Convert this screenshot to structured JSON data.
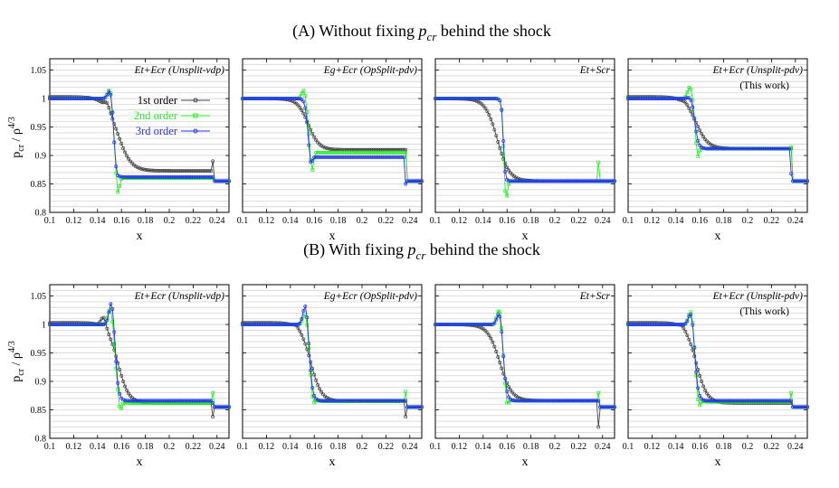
{
  "figure": {
    "row_titles": [
      {
        "prefix": "(A) Without fixing ",
        "var_main": "p",
        "var_sub": "cr",
        "suffix": " behind the shock"
      },
      {
        "prefix": "(B) With fixing ",
        "var_main": "p",
        "var_sub": "cr",
        "suffix": " behind the shock"
      }
    ],
    "ylabel": {
      "main": "p",
      "sub": "cr",
      "mid": " / ρ",
      "sup": "4/3"
    },
    "xlabel": "x",
    "legend": [
      {
        "label": "1st order",
        "color": "#444444"
      },
      {
        "label": "2nd order",
        "color": "#22ee22"
      },
      {
        "label": "3rd order",
        "color": "#2233ee"
      }
    ],
    "xticks": [
      "0.1",
      "0.12",
      "0.14",
      "0.16",
      "0.18",
      "0.2",
      "0.22",
      "0.24"
    ],
    "yticks": [
      "0.8",
      "0.85",
      "0.9",
      "0.95",
      "1",
      "1.05"
    ],
    "panel_titles": [
      {
        "line1": "Et+Ecr (Unsplit-vdp)",
        "line2": ""
      },
      {
        "line1": "Eg+Ecr (OpSplit-pdv)",
        "line2": ""
      },
      {
        "line1": "Et+Scr",
        "line2": ""
      },
      {
        "line1": "Et+Ecr (Unsplit-pdv)",
        "line2": "(This work)"
      }
    ]
  },
  "chart_data": {
    "type": "line",
    "xlabel": "x",
    "ylabel": "p_cr / ρ^(4/3)",
    "xlim": [
      0.1,
      0.25
    ],
    "ylim": [
      0.8,
      1.07
    ],
    "grid": "horizontal",
    "series_names": [
      "1st order",
      "2nd order",
      "3rd order"
    ],
    "panels": [
      {
        "row": "A",
        "title": "Et+Ecr (Unsplit-vdp)",
        "params": {
          "o1": {
            "L": 1.003,
            "mid": 0.873,
            "end": 0.855,
            "xs": 0.157,
            "w": 0.0055,
            "peak": [
              0.148,
              0.01
            ],
            "tail": 0.89
          },
          "o2": {
            "L": 1.0,
            "mid": 0.86,
            "end": 0.855,
            "xs": 0.1535,
            "w": 0.0012,
            "peak": [
              0.151,
              0.025
            ],
            "over": [
              0.157,
              -0.032
            ],
            "tail": 0.86
          },
          "o3": {
            "L": 1.0,
            "mid": 0.862,
            "end": 0.855,
            "xs": 0.1535,
            "w": 0.0012,
            "peak": [
              0.151,
              0.022
            ],
            "over": [
              0.156,
              -0.006
            ],
            "tail": 0.862
          }
        }
      },
      {
        "row": "A",
        "title": "Eg+Ecr (OpSplit-pdv)",
        "params": {
          "o1": {
            "L": 1.0,
            "mid": 0.91,
            "end": 0.855,
            "xs": 0.155,
            "w": 0.0045,
            "tail": 0.91
          },
          "o2": {
            "L": 1.0,
            "mid": 0.905,
            "end": 0.855,
            "xs": 0.1545,
            "w": 0.0015,
            "peak": [
              0.152,
              0.025
            ],
            "over": [
              0.158,
              -0.04
            ],
            "tail": 0.905
          },
          "o3": {
            "L": 1.0,
            "mid": 0.897,
            "end": 0.855,
            "xs": 0.1545,
            "w": 0.0012,
            "over": [
              0.157,
              -0.02
            ],
            "tail": 0.85
          }
        }
      },
      {
        "row": "A",
        "title": "Et+Scr",
        "params": {
          "o1": {
            "L": 1.0,
            "mid": 0.855,
            "end": 0.855,
            "xs": 0.152,
            "w": 0.005
          },
          "o2": {
            "L": 1.0,
            "mid": 0.855,
            "end": 0.855,
            "xs": 0.157,
            "w": 0.0008,
            "over": [
              0.159,
              -0.04
            ],
            "tail": 0.888
          },
          "o3": {
            "L": 1.0,
            "mid": 0.855,
            "end": 0.855,
            "xs": 0.157,
            "w": 0.0008,
            "over": [
              0.158,
              -0.003
            ]
          }
        }
      },
      {
        "row": "A",
        "title": "Et+Ecr (Unsplit-pdv)",
        "params": {
          "o1": {
            "L": 1.003,
            "mid": 0.912,
            "end": 0.855,
            "xs": 0.157,
            "w": 0.005,
            "peak": [
              0.148,
              0.003
            ],
            "tail": 0.912
          },
          "o2": {
            "L": 1.0,
            "mid": 0.912,
            "end": 0.855,
            "xs": 0.156,
            "w": 0.0015,
            "peak": [
              0.152,
              0.025
            ],
            "over": [
              0.158,
              -0.03
            ],
            "tail": 0.915
          },
          "o3": {
            "L": 1.0,
            "mid": 0.912,
            "end": 0.855,
            "xs": 0.156,
            "w": 0.0015,
            "peak": [
              0.152,
              0.005
            ],
            "tail": 0.868
          }
        }
      },
      {
        "row": "B",
        "title": "Et+Ecr (Unsplit-vdp)",
        "params": {
          "o1": {
            "L": 1.003,
            "mid": 0.862,
            "end": 0.855,
            "xs": 0.157,
            "w": 0.0045,
            "peak": [
              0.145,
              0.018
            ],
            "tail": 0.838
          },
          "o2": {
            "L": 1.0,
            "mid": 0.862,
            "end": 0.855,
            "xs": 0.155,
            "w": 0.0015,
            "peak": [
              0.151,
              0.035
            ],
            "over": [
              0.159,
              -0.02
            ],
            "tail": 0.88
          },
          "o3": {
            "L": 1.0,
            "mid": 0.866,
            "end": 0.855,
            "xs": 0.155,
            "w": 0.0015,
            "peak": [
              0.152,
              0.05
            ],
            "tail": 0.862
          }
        }
      },
      {
        "row": "B",
        "title": "Eg+Ecr (OpSplit-pdv)",
        "params": {
          "o1": {
            "L": 1.003,
            "mid": 0.865,
            "end": 0.855,
            "xs": 0.157,
            "w": 0.0045,
            "peak": [
              0.145,
              0.004
            ],
            "tail": 0.838
          },
          "o2": {
            "L": 1.0,
            "mid": 0.865,
            "end": 0.855,
            "xs": 0.156,
            "w": 0.0015,
            "peak": [
              0.153,
              0.03
            ],
            "over": [
              0.159,
              -0.015
            ],
            "tail": 0.882
          },
          "o3": {
            "L": 1.0,
            "mid": 0.866,
            "end": 0.855,
            "xs": 0.156,
            "w": 0.0015,
            "peak": [
              0.153,
              0.045
            ],
            "tail": 0.866
          }
        }
      },
      {
        "row": "B",
        "title": "Et+Scr",
        "params": {
          "o1": {
            "L": 1.0,
            "mid": 0.866,
            "end": 0.855,
            "xs": 0.154,
            "w": 0.005,
            "tail": 0.82
          },
          "o2": {
            "L": 1.0,
            "mid": 0.866,
            "end": 0.855,
            "xs": 0.157,
            "w": 0.0015,
            "peak": [
              0.154,
              0.038
            ],
            "over": [
              0.16,
              -0.02
            ],
            "tail": 0.88
          },
          "o3": {
            "L": 1.0,
            "mid": 0.866,
            "end": 0.855,
            "xs": 0.157,
            "w": 0.0015,
            "peak": [
              0.154,
              0.03
            ],
            "tail": 0.866
          }
        }
      },
      {
        "row": "B",
        "title": "Et+Ecr (Unsplit-pdv)",
        "params": {
          "o1": {
            "L": 1.003,
            "mid": 0.862,
            "end": 0.855,
            "xs": 0.157,
            "w": 0.0045,
            "peak": [
              0.145,
              0.004
            ],
            "tail": 0.862
          },
          "o2": {
            "L": 1.0,
            "mid": 0.864,
            "end": 0.855,
            "xs": 0.156,
            "w": 0.0015,
            "peak": [
              0.153,
              0.035
            ],
            "over": [
              0.159,
              -0.02
            ],
            "tail": 0.88
          },
          "o3": {
            "L": 1.0,
            "mid": 0.866,
            "end": 0.855,
            "xs": 0.156,
            "w": 0.0015,
            "peak": [
              0.153,
              0.03
            ],
            "tail": 0.866
          }
        }
      }
    ]
  }
}
